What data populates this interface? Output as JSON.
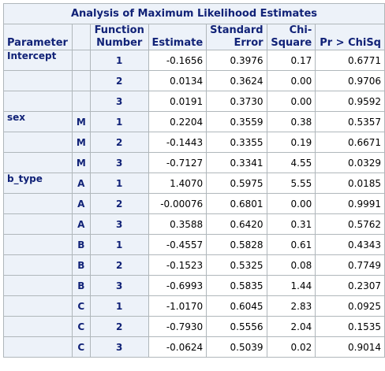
{
  "table": {
    "title": "Analysis of Maximum Likelihood Estimates",
    "headers": {
      "parameter": "Parameter",
      "level": "",
      "function_line1": "Function",
      "function_line2": "Number",
      "estimate": "Estimate",
      "stderr_line1": "Standard",
      "stderr_line2": "Error",
      "chisq_line1": "Chi-",
      "chisq_line2": "Square",
      "pvalue": "Pr > ChiSq"
    },
    "rows": [
      {
        "parameter": "Intercept",
        "level": "",
        "function": "1",
        "estimate": "-0.1656",
        "stderr": "0.3976",
        "chisq": "0.17",
        "p": "0.6771"
      },
      {
        "parameter": "",
        "level": "",
        "function": "2",
        "estimate": "0.0134",
        "stderr": "0.3624",
        "chisq": "0.00",
        "p": "0.9706"
      },
      {
        "parameter": "",
        "level": "",
        "function": "3",
        "estimate": "0.0191",
        "stderr": "0.3730",
        "chisq": "0.00",
        "p": "0.9592"
      },
      {
        "parameter": "sex",
        "level": "M",
        "function": "1",
        "estimate": "0.2204",
        "stderr": "0.3559",
        "chisq": "0.38",
        "p": "0.5357"
      },
      {
        "parameter": "",
        "level": "M",
        "function": "2",
        "estimate": "-0.1443",
        "stderr": "0.3355",
        "chisq": "0.19",
        "p": "0.6671"
      },
      {
        "parameter": "",
        "level": "M",
        "function": "3",
        "estimate": "-0.7127",
        "stderr": "0.3341",
        "chisq": "4.55",
        "p": "0.0329"
      },
      {
        "parameter": "b_type",
        "level": "A",
        "function": "1",
        "estimate": "1.4070",
        "stderr": "0.5975",
        "chisq": "5.55",
        "p": "0.0185"
      },
      {
        "parameter": "",
        "level": "A",
        "function": "2",
        "estimate": "-0.00076",
        "stderr": "0.6801",
        "chisq": "0.00",
        "p": "0.9991"
      },
      {
        "parameter": "",
        "level": "A",
        "function": "3",
        "estimate": "0.3588",
        "stderr": "0.6420",
        "chisq": "0.31",
        "p": "0.5762"
      },
      {
        "parameter": "",
        "level": "B",
        "function": "1",
        "estimate": "-0.4557",
        "stderr": "0.5828",
        "chisq": "0.61",
        "p": "0.4343"
      },
      {
        "parameter": "",
        "level": "B",
        "function": "2",
        "estimate": "-0.1523",
        "stderr": "0.5325",
        "chisq": "0.08",
        "p": "0.7749"
      },
      {
        "parameter": "",
        "level": "B",
        "function": "3",
        "estimate": "-0.6993",
        "stderr": "0.5835",
        "chisq": "1.44",
        "p": "0.2307"
      },
      {
        "parameter": "",
        "level": "C",
        "function": "1",
        "estimate": "-1.0170",
        "stderr": "0.6045",
        "chisq": "2.83",
        "p": "0.0925"
      },
      {
        "parameter": "",
        "level": "C",
        "function": "2",
        "estimate": "-0.7930",
        "stderr": "0.5556",
        "chisq": "2.04",
        "p": "0.1535"
      },
      {
        "parameter": "",
        "level": "C",
        "function": "3",
        "estimate": "-0.0624",
        "stderr": "0.5039",
        "chisq": "0.02",
        "p": "0.9014"
      }
    ]
  },
  "colors": {
    "header_bg": "#edf2f9",
    "header_text": "#112277",
    "grid_line": "#b0b7bb"
  }
}
